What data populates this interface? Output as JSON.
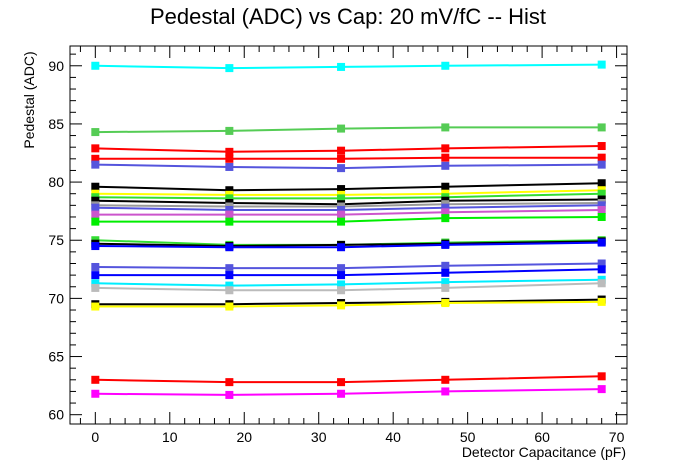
{
  "chart_data": {
    "type": "line",
    "title": "Pedestal (ADC) vs Cap: 20 mV/fC -- Hist",
    "xlabel": "Detector Capacitance (pF)",
    "ylabel": "Pedestal (ADC)",
    "xlim": [
      -3.4,
      71.4
    ],
    "ylim": [
      59.2,
      91.7
    ],
    "x_ticks": [
      0,
      10,
      20,
      30,
      40,
      50,
      60,
      70
    ],
    "y_ticks": [
      60,
      65,
      70,
      75,
      80,
      85,
      90
    ],
    "x": [
      0,
      18,
      33,
      47,
      68
    ],
    "marker": "square",
    "grid": false,
    "legend": "none",
    "series": [
      {
        "color": "#00ffff",
        "values": [
          90.0,
          89.8,
          89.9,
          90.0,
          90.1
        ]
      },
      {
        "color": "#55cc55",
        "values": [
          84.3,
          84.4,
          84.6,
          84.7,
          84.7
        ]
      },
      {
        "color": "#ff0000",
        "values": [
          82.9,
          82.6,
          82.7,
          82.9,
          83.1
        ]
      },
      {
        "color": "#ff0000",
        "values": [
          82.0,
          82.0,
          82.0,
          82.1,
          82.1
        ]
      },
      {
        "color": "#5555dd",
        "values": [
          81.5,
          81.3,
          81.2,
          81.4,
          81.5
        ]
      },
      {
        "color": "#000000",
        "values": [
          79.6,
          79.3,
          79.4,
          79.6,
          79.9
        ]
      },
      {
        "color": "#ffff00",
        "values": [
          79.0,
          78.9,
          78.9,
          79.0,
          79.3
        ]
      },
      {
        "color": "#33dd33",
        "values": [
          78.7,
          78.6,
          78.6,
          78.7,
          79.0
        ]
      },
      {
        "color": "#000000",
        "values": [
          78.4,
          78.2,
          78.1,
          78.4,
          78.5
        ]
      },
      {
        "color": "#999999",
        "values": [
          78.0,
          77.9,
          77.9,
          78.1,
          78.2
        ]
      },
      {
        "color": "#5555dd",
        "values": [
          77.8,
          77.6,
          77.6,
          77.8,
          78.0
        ]
      },
      {
        "color": "#cc55cc",
        "values": [
          77.2,
          77.2,
          77.2,
          77.4,
          77.6
        ]
      },
      {
        "color": "#00ee00",
        "values": [
          76.6,
          76.6,
          76.6,
          76.9,
          77.0
        ]
      },
      {
        "color": "#33dd33",
        "values": [
          75.0,
          74.6,
          74.6,
          74.8,
          75.0
        ]
      },
      {
        "color": "#000000",
        "values": [
          74.7,
          74.5,
          74.6,
          74.7,
          74.9
        ]
      },
      {
        "color": "#0000ff",
        "values": [
          74.5,
          74.4,
          74.4,
          74.6,
          74.8
        ]
      },
      {
        "color": "#5555dd",
        "values": [
          72.7,
          72.6,
          72.6,
          72.8,
          73.0
        ]
      },
      {
        "color": "#0000ff",
        "values": [
          72.0,
          72.0,
          72.0,
          72.2,
          72.5
        ]
      },
      {
        "color": "#00eeff",
        "values": [
          71.3,
          71.1,
          71.2,
          71.4,
          71.6
        ]
      },
      {
        "color": "#bbbbbb",
        "values": [
          70.9,
          70.7,
          70.7,
          70.9,
          71.3
        ]
      },
      {
        "color": "#000000",
        "values": [
          69.5,
          69.5,
          69.6,
          69.7,
          69.9
        ]
      },
      {
        "color": "#ffff00",
        "values": [
          69.3,
          69.3,
          69.4,
          69.6,
          69.7
        ]
      },
      {
        "color": "#ff0000",
        "values": [
          63.0,
          62.8,
          62.8,
          63.0,
          63.3
        ]
      },
      {
        "color": "#ff00ff",
        "values": [
          61.8,
          61.7,
          61.8,
          62.0,
          62.2
        ]
      }
    ]
  }
}
